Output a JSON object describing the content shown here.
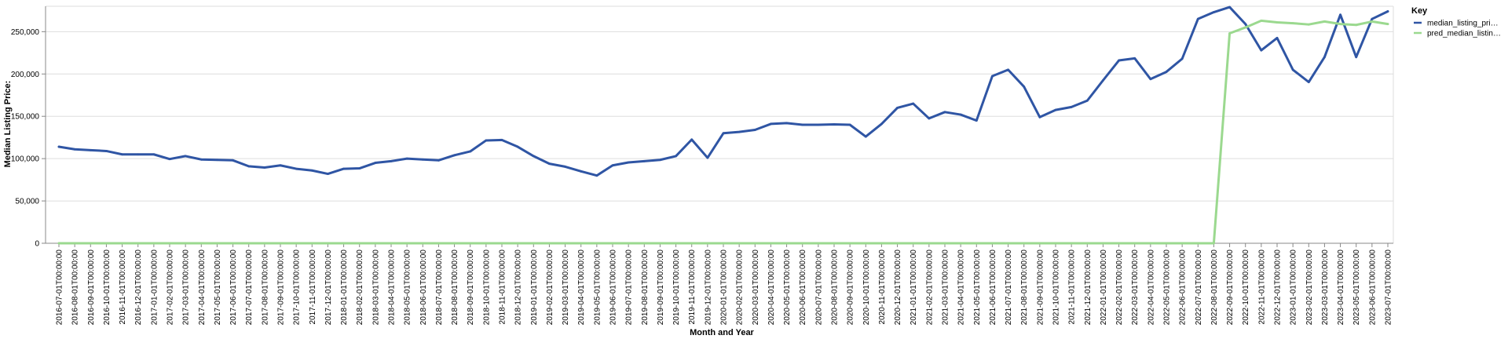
{
  "chart_data": {
    "type": "line",
    "title": "",
    "xlabel": "Month and Year",
    "ylabel": "Median Listing Price:",
    "ylim": [
      0,
      280000
    ],
    "yticks": [
      0,
      50000,
      100000,
      150000,
      200000,
      250000
    ],
    "ytick_labels": [
      "0",
      "50,000",
      "100,000",
      "150,000",
      "200,000",
      "250,000"
    ],
    "grid": true,
    "legend": {
      "title": "Key",
      "position": "right"
    },
    "x": [
      "2016-07-01T00:00:00",
      "2016-08-01T00:00:00",
      "2016-09-01T00:00:00",
      "2016-10-01T00:00:00",
      "2016-11-01T00:00:00",
      "2016-12-01T00:00:00",
      "2017-01-01T00:00:00",
      "2017-02-01T00:00:00",
      "2017-03-01T00:00:00",
      "2017-04-01T00:00:00",
      "2017-05-01T00:00:00",
      "2017-06-01T00:00:00",
      "2017-07-01T00:00:00",
      "2017-08-01T00:00:00",
      "2017-09-01T00:00:00",
      "2017-10-01T00:00:00",
      "2017-11-01T00:00:00",
      "2017-12-01T00:00:00",
      "2018-01-01T00:00:00",
      "2018-02-01T00:00:00",
      "2018-03-01T00:00:00",
      "2018-04-01T00:00:00",
      "2018-05-01T00:00:00",
      "2018-06-01T00:00:00",
      "2018-07-01T00:00:00",
      "2018-08-01T00:00:00",
      "2018-09-01T00:00:00",
      "2018-10-01T00:00:00",
      "2018-11-01T00:00:00",
      "2018-12-01T00:00:00",
      "2019-01-01T00:00:00",
      "2019-02-01T00:00:00",
      "2019-03-01T00:00:00",
      "2019-04-01T00:00:00",
      "2019-05-01T00:00:00",
      "2019-06-01T00:00:00",
      "2019-07-01T00:00:00",
      "2019-08-01T00:00:00",
      "2019-09-01T00:00:00",
      "2019-10-01T00:00:00",
      "2019-11-01T00:00:00",
      "2019-12-01T00:00:00",
      "2020-01-01T00:00:00",
      "2020-02-01T00:00:00",
      "2020-03-01T00:00:00",
      "2020-04-01T00:00:00",
      "2020-05-01T00:00:00",
      "2020-06-01T00:00:00",
      "2020-07-01T00:00:00",
      "2020-08-01T00:00:00",
      "2020-09-01T00:00:00",
      "2020-10-01T00:00:00",
      "2020-11-01T00:00:00",
      "2020-12-01T00:00:00",
      "2021-01-01T00:00:00",
      "2021-02-01T00:00:00",
      "2021-03-01T00:00:00",
      "2021-04-01T00:00:00",
      "2021-05-01T00:00:00",
      "2021-06-01T00:00:00",
      "2021-07-01T00:00:00",
      "2021-08-01T00:00:00",
      "2021-09-01T00:00:00",
      "2021-10-01T00:00:00",
      "2021-11-01T00:00:00",
      "2021-12-01T00:00:00",
      "2022-01-01T00:00:00",
      "2022-02-01T00:00:00",
      "2022-03-01T00:00:00",
      "2022-04-01T00:00:00",
      "2022-05-01T00:00:00",
      "2022-06-01T00:00:00",
      "2022-07-01T00:00:00",
      "2022-08-01T00:00:00",
      "2022-09-01T00:00:00",
      "2022-10-01T00:00:00",
      "2022-11-01T00:00:00",
      "2022-12-01T00:00:00",
      "2023-01-01T00:00:00",
      "2023-02-01T00:00:00",
      "2023-03-01T00:00:00",
      "2023-04-01T00:00:00",
      "2023-05-01T00:00:00",
      "2023-06-01T00:00:00",
      "2023-07-01T00:00:00"
    ],
    "series": [
      {
        "name": "median_listing_pri…",
        "color": "#2f55a4",
        "values": [
          114000,
          111000,
          110000,
          109000,
          105000,
          105000,
          105000,
          99500,
          103000,
          99000,
          98500,
          98000,
          91000,
          89500,
          92000,
          88000,
          86000,
          82000,
          88000,
          88500,
          95000,
          97000,
          100000,
          99000,
          98000,
          104000,
          108500,
          121500,
          122000,
          114000,
          103000,
          94000,
          90500,
          85000,
          80000,
          92000,
          95500,
          97000,
          98500,
          103000,
          122500,
          101000,
          130000,
          131500,
          134000,
          141000,
          142000,
          140000,
          140000,
          140500,
          140000,
          126000,
          141000,
          160000,
          165000,
          147500,
          155000,
          152000,
          145000,
          197500,
          205000,
          185000,
          149000,
          157500,
          161000,
          168500,
          192500,
          216000,
          218500,
          194000,
          202500,
          218000,
          265000,
          273000,
          279000,
          259000,
          228000,
          242500,
          205000,
          190500,
          220000,
          270000,
          220000,
          265000,
          274000
        ]
      },
      {
        "name": "pred_median_listin…",
        "color": "#9bd98f",
        "values": [
          0,
          0,
          0,
          0,
          0,
          0,
          0,
          0,
          0,
          0,
          0,
          0,
          0,
          0,
          0,
          0,
          0,
          0,
          0,
          0,
          0,
          0,
          0,
          0,
          0,
          0,
          0,
          0,
          0,
          0,
          0,
          0,
          0,
          0,
          0,
          0,
          0,
          0,
          0,
          0,
          0,
          0,
          0,
          0,
          0,
          0,
          0,
          0,
          0,
          0,
          0,
          0,
          0,
          0,
          0,
          0,
          0,
          0,
          0,
          0,
          0,
          0,
          0,
          0,
          0,
          0,
          0,
          0,
          0,
          0,
          0,
          0,
          0,
          0,
          248000,
          255000,
          263000,
          261000,
          260000,
          258500,
          262000,
          259000,
          258000,
          262000,
          259000
        ]
      }
    ]
  }
}
